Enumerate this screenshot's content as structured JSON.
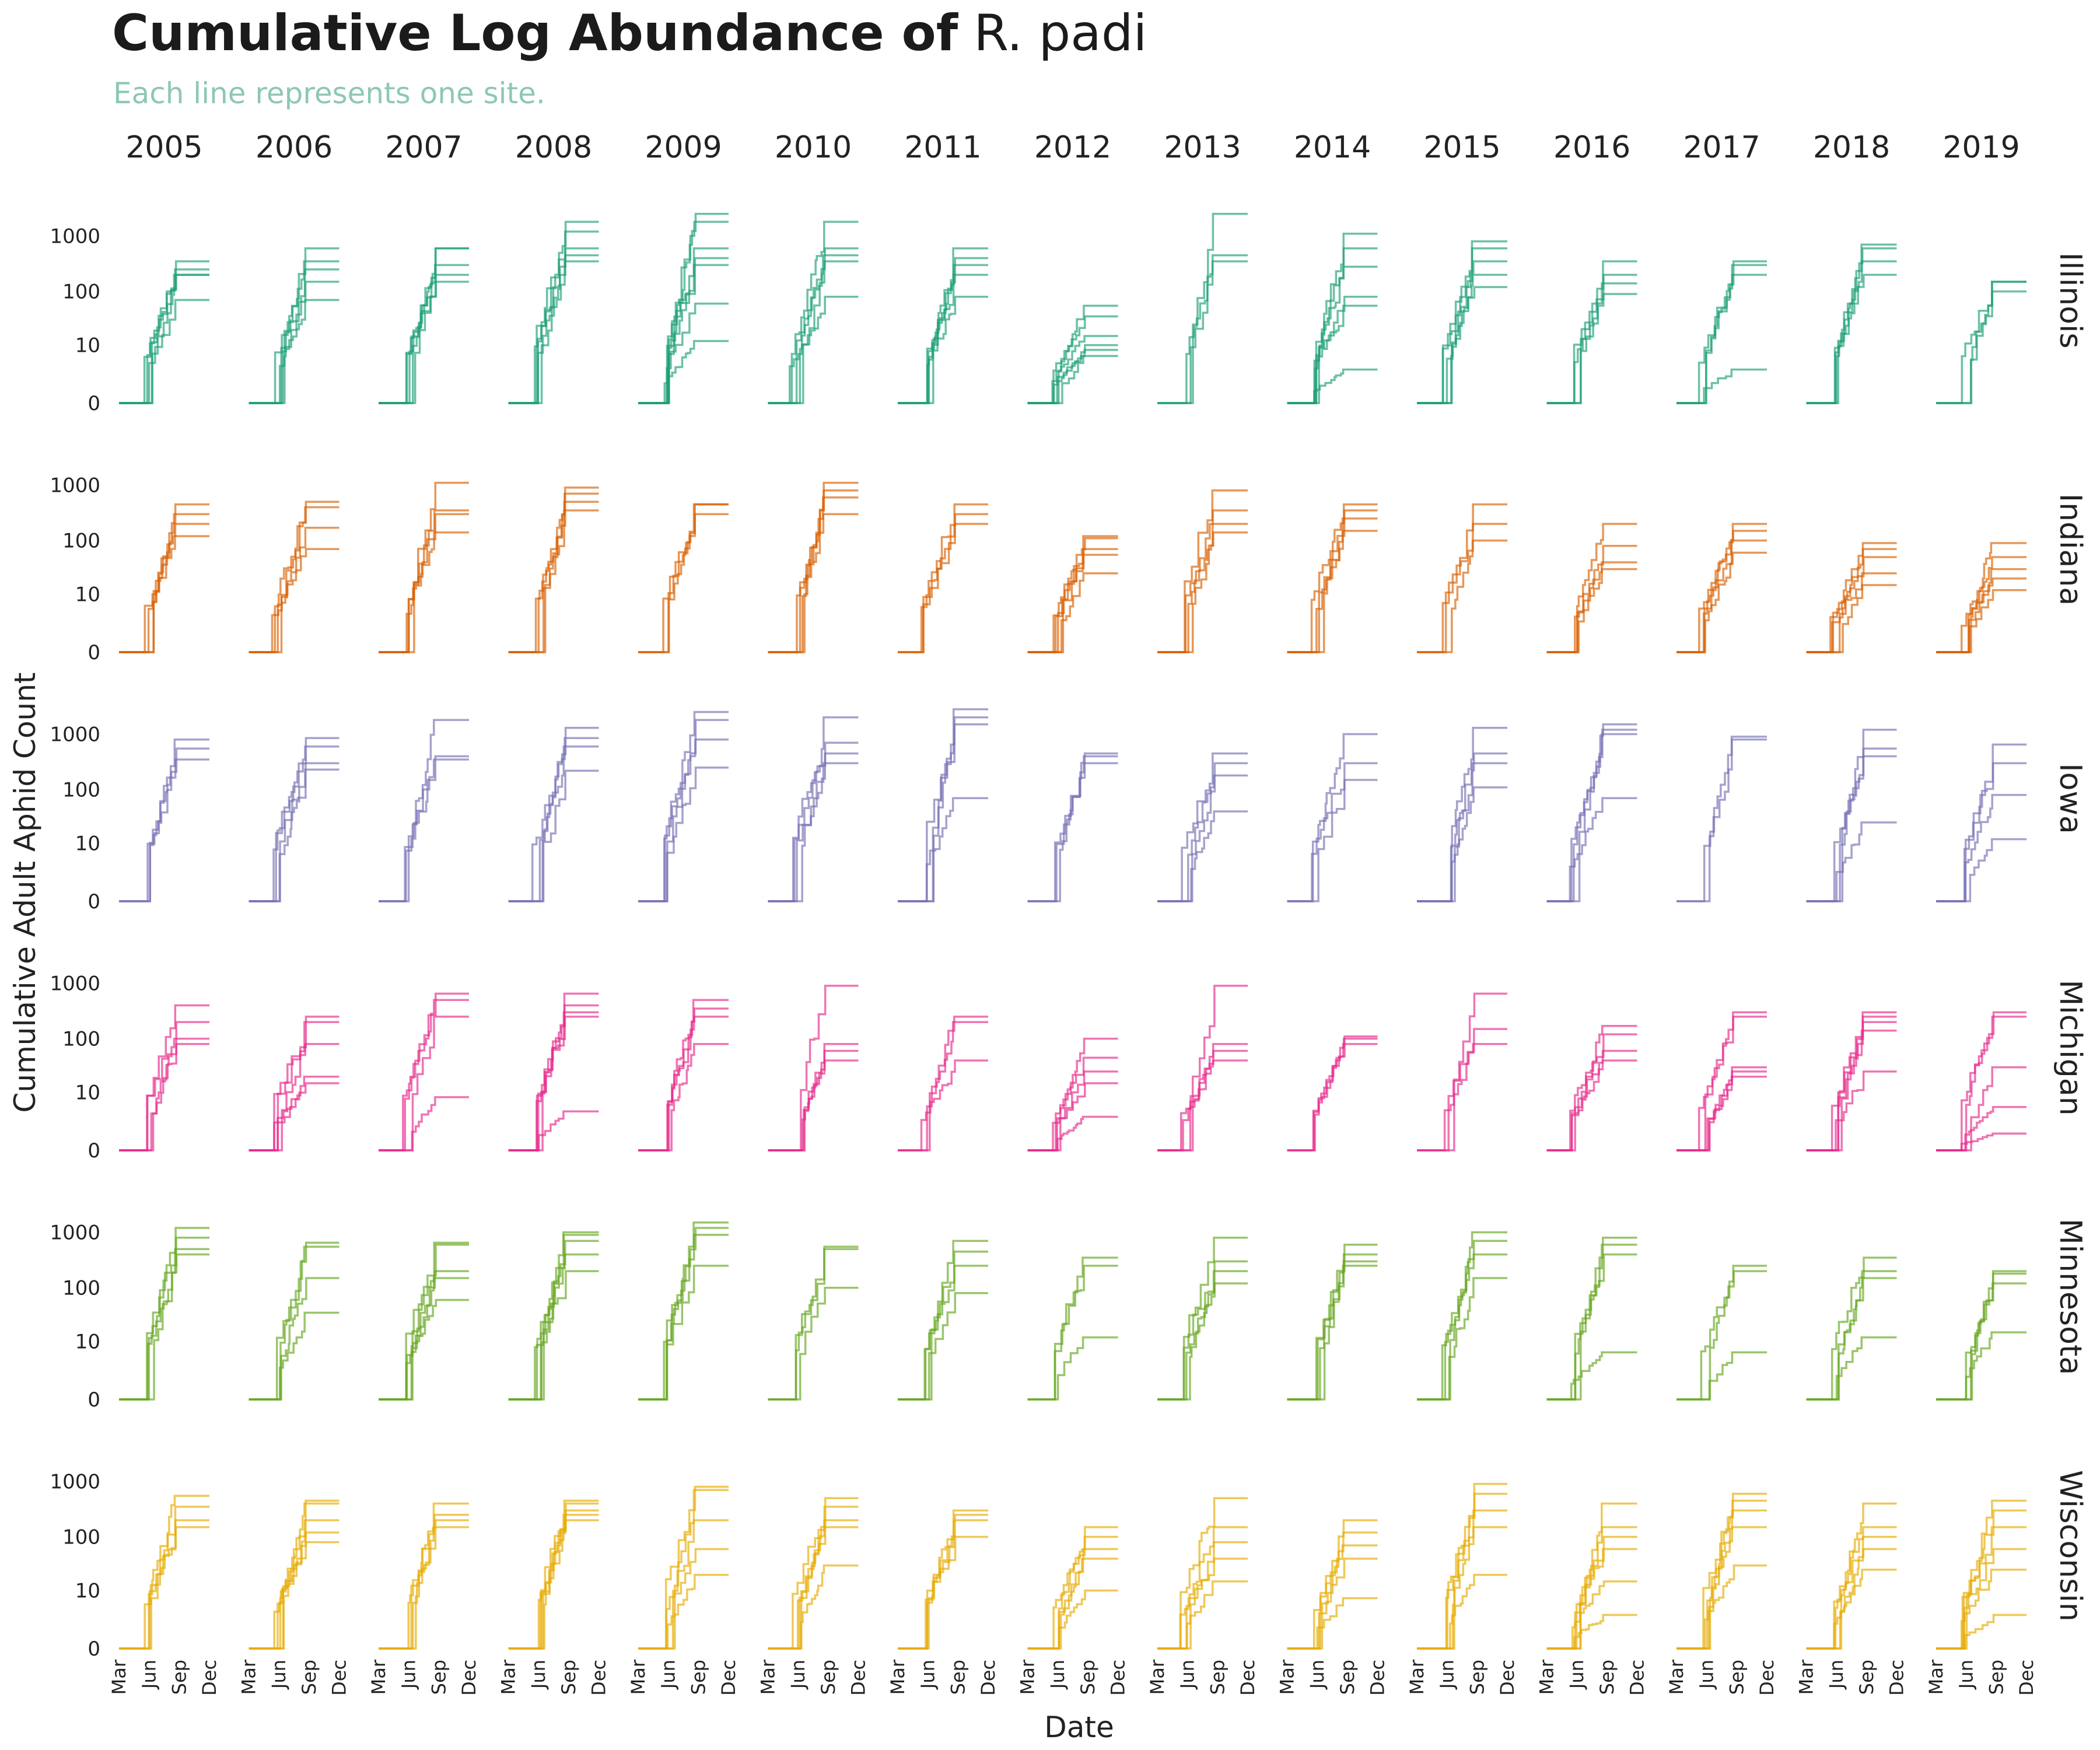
{
  "title": {
    "main": "Cumulative Log Abundance of",
    "species": "R. padi"
  },
  "subtitle": "Each line represents one site.",
  "chart_data": {
    "type": "line",
    "step": true,
    "xlabel": "Date",
    "ylabel": "Cumulative Adult Aphid Count",
    "yscale": "log1p",
    "yticks": [
      0,
      10,
      100,
      1000
    ],
    "ytick_labels": [
      "0",
      "10",
      "100",
      "1000"
    ],
    "xticks": [
      "Mar",
      "Jun",
      "Sep",
      "Dec"
    ],
    "xrange_months": [
      3,
      12
    ],
    "years": [
      "2005",
      "2006",
      "2007",
      "2008",
      "2009",
      "2010",
      "2011",
      "2012",
      "2013",
      "2014",
      "2015",
      "2016",
      "2017",
      "2018",
      "2019"
    ],
    "states": [
      {
        "name": "Illinois",
        "color": "#1b9e77"
      },
      {
        "name": "Indiana",
        "color": "#d95f02"
      },
      {
        "name": "Iowa",
        "color": "#7570b3"
      },
      {
        "name": "Michigan",
        "color": "#e7298a"
      },
      {
        "name": "Minnesota",
        "color": "#66a61e"
      },
      {
        "name": "Wisconsin",
        "color": "#e6ab02"
      }
    ],
    "series_note": "final cumulative totals per site (approximate)",
    "finals": {
      "Illinois": [
        [
          350,
          250,
          200,
          200,
          70
        ],
        [
          600,
          350,
          250,
          150,
          70
        ],
        [
          600,
          600,
          300,
          200,
          150
        ],
        [
          1800,
          1200,
          600,
          450,
          350
        ],
        [
          2500,
          1800,
          600,
          400,
          300,
          60,
          12
        ],
        [
          1800,
          600,
          450,
          350,
          80
        ],
        [
          600,
          400,
          300,
          200,
          80
        ],
        [
          55,
          35,
          15,
          10,
          8,
          6
        ],
        [
          2500,
          450,
          350
        ],
        [
          1100,
          600,
          280,
          80,
          55,
          3
        ],
        [
          800,
          600,
          350,
          200,
          120
        ],
        [
          350,
          200,
          140,
          90
        ],
        [
          350,
          300,
          200,
          3
        ],
        [
          700,
          600,
          350,
          200
        ],
        [
          150,
          150,
          100
        ]
      ],
      "Indiana": [
        [
          450,
          300,
          200,
          120
        ],
        [
          500,
          400,
          170,
          70
        ],
        [
          1100,
          350,
          300,
          140
        ],
        [
          900,
          700,
          500,
          350
        ],
        [
          450,
          300,
          450
        ],
        [
          1100,
          800,
          600,
          300
        ],
        [
          450,
          300,
          200
        ],
        [
          120,
          110,
          70,
          55,
          25
        ],
        [
          800,
          350,
          200,
          140
        ],
        [
          450,
          350,
          250,
          150
        ],
        [
          450,
          200,
          100
        ],
        [
          200,
          80,
          40,
          30
        ],
        [
          200,
          150,
          100,
          60
        ],
        [
          90,
          70,
          50,
          25,
          15
        ],
        [
          90,
          50,
          30,
          20,
          12
        ]
      ],
      "Iowa": [
        [
          800,
          550,
          350
        ],
        [
          850,
          600,
          300,
          230
        ],
        [
          1800,
          400,
          350
        ],
        [
          1300,
          850,
          600,
          220
        ],
        [
          2500,
          1800,
          800,
          250
        ],
        [
          2000,
          700,
          450,
          300
        ],
        [
          2800,
          2000,
          1500,
          70
        ],
        [
          450,
          400,
          300
        ],
        [
          450,
          300,
          180,
          40
        ],
        [
          1000,
          300,
          150
        ],
        [
          1300,
          450,
          300,
          110
        ],
        [
          1500,
          1200,
          1000,
          70
        ],
        [
          900,
          800
        ],
        [
          1200,
          550,
          400,
          25
        ],
        [
          650,
          300,
          80,
          12
        ]
      ],
      "Michigan": [
        [
          400,
          200,
          100,
          80
        ],
        [
          250,
          200,
          80,
          20,
          15
        ],
        [
          650,
          500,
          250,
          8
        ],
        [
          650,
          400,
          300,
          250,
          4
        ],
        [
          500,
          350,
          250,
          80
        ],
        [
          900,
          80,
          60,
          40
        ],
        [
          250,
          200,
          40
        ],
        [
          100,
          45,
          25,
          15,
          3
        ],
        [
          900,
          80,
          60,
          40
        ],
        [
          110,
          100,
          80
        ],
        [
          650,
          150,
          80
        ],
        [
          170,
          120,
          60,
          40
        ],
        [
          300,
          250,
          30,
          25,
          20
        ],
        [
          300,
          250,
          200,
          140,
          25
        ],
        [
          300,
          250,
          30,
          5,
          1
        ]
      ],
      "Minnesota": [
        [
          1200,
          800,
          500,
          400
        ],
        [
          650,
          550,
          150,
          35
        ],
        [
          650,
          600,
          200,
          150,
          60
        ],
        [
          1000,
          900,
          700,
          400,
          200
        ],
        [
          1500,
          1200,
          900,
          250
        ],
        [
          550,
          500,
          100
        ],
        [
          700,
          450,
          250,
          80
        ],
        [
          350,
          250,
          12
        ],
        [
          800,
          300,
          200,
          120
        ],
        [
          600,
          400,
          300,
          250
        ],
        [
          1000,
          700,
          400,
          150
        ],
        [
          800,
          600,
          400,
          6
        ],
        [
          250,
          200,
          6
        ],
        [
          350,
          200,
          150,
          12
        ],
        [
          200,
          180,
          120,
          15
        ]
      ],
      "Wisconsin": [
        [
          550,
          350,
          200,
          150
        ],
        [
          450,
          400,
          200,
          120,
          80
        ],
        [
          400,
          250,
          200,
          150
        ],
        [
          450,
          400,
          300,
          250,
          200
        ],
        [
          800,
          700,
          200,
          60,
          20
        ],
        [
          500,
          350,
          200,
          150,
          30
        ],
        [
          300,
          250,
          200,
          100
        ],
        [
          150,
          100,
          60,
          40,
          10
        ],
        [
          500,
          150,
          80,
          40,
          15
        ],
        [
          200,
          120,
          70,
          40,
          7
        ],
        [
          900,
          600,
          300,
          150,
          20
        ],
        [
          400,
          150,
          100,
          60,
          15,
          3
        ],
        [
          600,
          450,
          300,
          150,
          30
        ],
        [
          400,
          150,
          100,
          60,
          25
        ],
        [
          450,
          300,
          150,
          60,
          25,
          3
        ]
      ]
    }
  }
}
